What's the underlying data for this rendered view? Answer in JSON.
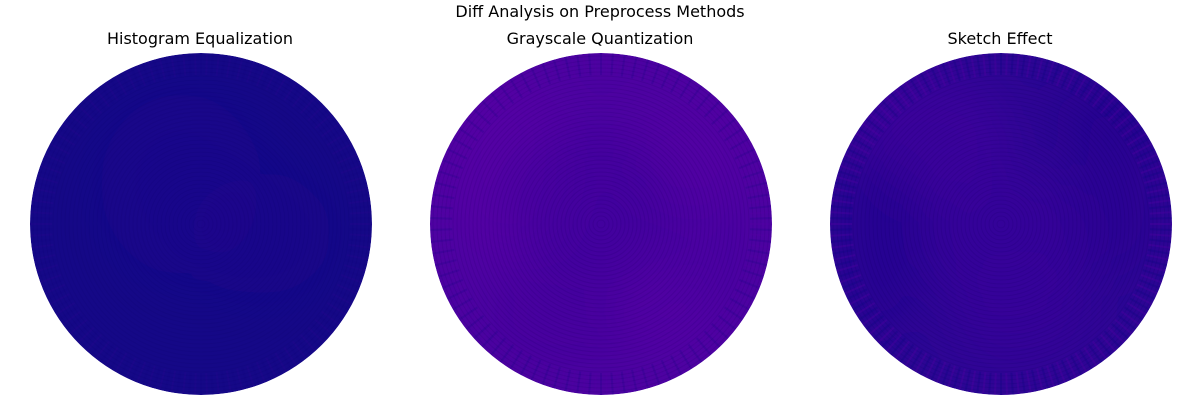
{
  "figure": {
    "title": "Diff Analysis on Preprocess Methods"
  },
  "chart_data": [
    {
      "type": "heatmap",
      "projection": "polar",
      "title": "Histogram Equalization",
      "grid": false,
      "axes_visible": false,
      "colormap": "plasma",
      "base_color": "#150887",
      "mean_level": 0.05,
      "pattern": "uniform, faint concentric ripple at center"
    },
    {
      "type": "heatmap",
      "projection": "polar",
      "title": "Grayscale Quantization",
      "grid": false,
      "axes_visible": false,
      "colormap": "plasma",
      "base_color": "#4c02a1",
      "mean_level": 0.2,
      "pattern": "purple field with darker blue blotches and concentric ripple"
    },
    {
      "type": "heatmap",
      "projection": "polar",
      "title": "Sketch Effect",
      "grid": false,
      "axes_visible": false,
      "colormap": "plasma",
      "base_color": "#2d0594",
      "mean_level": 0.14,
      "pattern": "dark blue-purple with brighter upper-left and center-bottom lobes, radial spokes at rim"
    }
  ]
}
